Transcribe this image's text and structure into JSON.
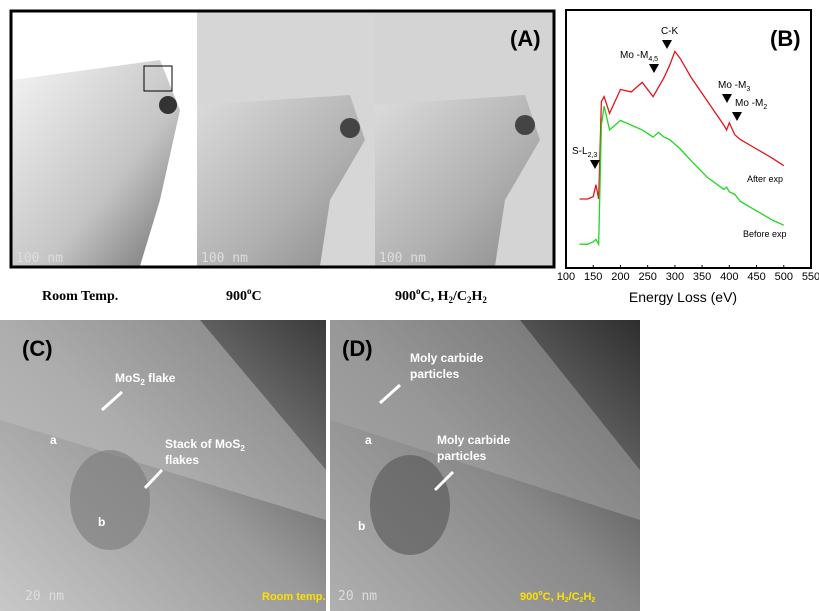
{
  "panel_a": {
    "label": "(A)",
    "images": [
      {
        "scale_bar": "100 nm",
        "caption": [
          "Room Temp."
        ]
      },
      {
        "scale_bar": "100 nm",
        "caption": [
          "900",
          "o",
          "C"
        ]
      },
      {
        "scale_bar": "100 nm",
        "caption": [
          "900",
          "o",
          "C, H",
          "2",
          "/C",
          "2",
          "H",
          "2"
        ]
      }
    ]
  },
  "chart_data": {
    "type": "line",
    "panel_label": "(B)",
    "x_label": "Energy Loss (eV)",
    "x": [
      125,
      140,
      150,
      155,
      160,
      165,
      170,
      180,
      200,
      220,
      240,
      260,
      270,
      280,
      290,
      300,
      310,
      330,
      360,
      390,
      395,
      400,
      410,
      420,
      450,
      480,
      500
    ],
    "series": [
      {
        "name": "After exp",
        "color": "#e8141c",
        "values": [
          29,
          29,
          30,
          35,
          29,
          70,
          72,
          65,
          75,
          74,
          78,
          72,
          76,
          80,
          85,
          91,
          88,
          80,
          70,
          60,
          58,
          61,
          56,
          54,
          50,
          46,
          43
        ]
      },
      {
        "name": "Before exp",
        "color": "#1fd81f",
        "values": [
          10,
          10,
          11,
          12,
          10,
          60,
          68,
          58,
          62,
          60,
          58,
          55,
          57,
          55,
          54,
          52,
          50,
          45,
          38,
          33,
          34,
          32,
          31,
          28,
          24,
          20,
          18
        ]
      }
    ],
    "xlim": [
      100,
      550
    ],
    "xticks": [
      100,
      150,
      200,
      250,
      300,
      350,
      400,
      450,
      500,
      550
    ],
    "ylim": [
      0,
      100
    ],
    "annotations": [
      {
        "text": "C-K"
      },
      {
        "text": "Mo -M",
        "sub": "4,5"
      },
      {
        "text": "Mo -M",
        "sub": "3"
      },
      {
        "text": "Mo -M",
        "sub": "2"
      },
      {
        "text": "S-L",
        "sub": "2,3"
      }
    ]
  },
  "panel_c": {
    "label": "(C)",
    "labels": [
      "MoS",
      "2",
      " flake",
      "a",
      "Stack of MoS",
      "2",
      "flakes",
      "b"
    ],
    "scale_bar": "20 nm",
    "condition": "Room temp."
  },
  "panel_d": {
    "label": "(D)",
    "labels": [
      "Moly carbide",
      "particles",
      "a",
      "Moly carbide",
      "particles",
      "b"
    ],
    "scale_bar": "20 nm",
    "condition": [
      "900",
      "o",
      "C,  H",
      "2",
      "/C",
      "2",
      "H",
      "2"
    ]
  }
}
